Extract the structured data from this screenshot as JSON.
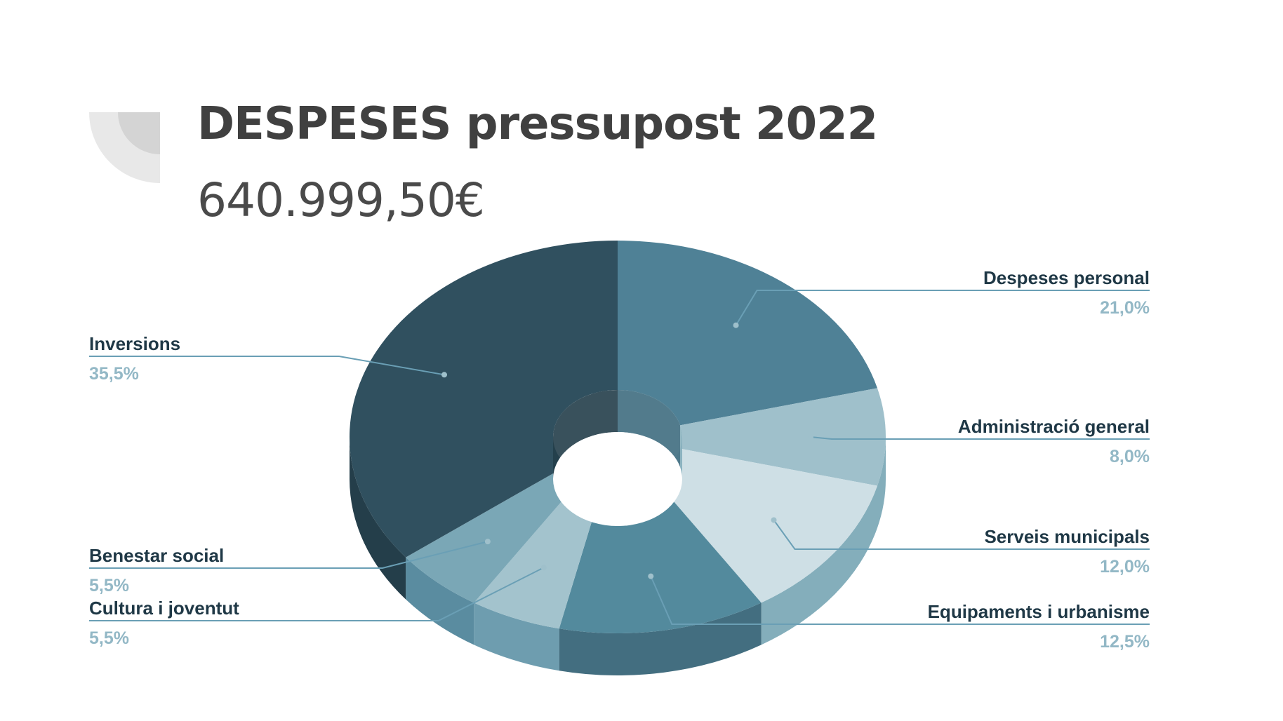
{
  "title": "DESPESES pressupost 2022",
  "total": "640.999,50€",
  "colors": {
    "title": "#404040",
    "label_name": "#1f3846",
    "label_percent": "#93b8c6",
    "leader_line": "#6a9fb5"
  },
  "chart_data": {
    "type": "pie",
    "variant": "3d-donut",
    "title": "DESPESES pressupost 2022",
    "subtitle": "640.999,50€",
    "units": "%",
    "slices": [
      {
        "label": "Despeses personal",
        "percent_label": "21,0%",
        "value": 21.0,
        "color": "#4f8196",
        "side_color": "#3f6d80"
      },
      {
        "label": "Administració general",
        "percent_label": "8,0%",
        "value": 8.0,
        "color": "#9fc0cb",
        "side_color": "#84aebb"
      },
      {
        "label": "Serveis municipals",
        "percent_label": "12,0%",
        "value": 12.0,
        "color": "#cedfe5",
        "side_color": "#84aebb"
      },
      {
        "label": "Equipaments i urbanisme",
        "percent_label": "12,5%",
        "value": 12.5,
        "color": "#538a9d",
        "side_color": "#436e80"
      },
      {
        "label": "Cultura i joventut",
        "percent_label": "5,5%",
        "value": 5.5,
        "color": "#a3c3cd",
        "side_color": "#6e9daf"
      },
      {
        "label": "Benestar social",
        "percent_label": "5,5%",
        "value": 5.5,
        "color": "#7aa7b6",
        "side_color": "#5a8ca0"
      },
      {
        "label": "Inversions",
        "percent_label": "35,5%",
        "value": 35.5,
        "color": "#30505f",
        "side_color": "#243e4a"
      }
    ],
    "legend": "outside-labels-with-leader-lines"
  }
}
